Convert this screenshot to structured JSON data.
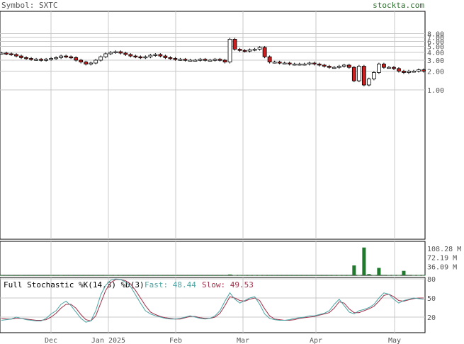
{
  "header": {
    "symbol_label": "Symbol: SXTC",
    "site": "stockta.com"
  },
  "stochastic": {
    "title": "Full Stochastic %K(14,3) %D(3)",
    "fast_label": "Fast: 48.44",
    "slow_label": "Slow: 49.53",
    "fast_color": "#4aa3a3",
    "slow_color": "#a0304a"
  },
  "colors": {
    "up_candle": "#ffffff",
    "down_candle": "#cc1f1f",
    "volume": "#1f7a2e",
    "grid": "#c8c8c8",
    "frame": "#000000"
  },
  "chart_data": [
    {
      "type": "candlestick",
      "title": "",
      "y_scale": "log",
      "y_ticks": [
        "8.00",
        "7.00",
        "6.00",
        "5.00",
        "4.00",
        "3.00",
        "2.00",
        "1.00"
      ],
      "x_ticks": [
        "Dec",
        "Jan 2025",
        "Feb",
        "Mar",
        "Apr",
        "May"
      ],
      "close_series": [
        3.9,
        3.8,
        3.7,
        3.5,
        3.3,
        3.2,
        3.1,
        3.1,
        3.0,
        3.1,
        3.2,
        3.3,
        3.5,
        3.4,
        3.3,
        3.0,
        2.8,
        2.6,
        2.7,
        3.0,
        3.4,
        3.8,
        4.0,
        4.1,
        3.9,
        3.7,
        3.5,
        3.4,
        3.3,
        3.4,
        3.6,
        3.7,
        3.5,
        3.3,
        3.2,
        3.1,
        3.1,
        3.0,
        3.0,
        3.0,
        3.1,
        3.0,
        3.0,
        3.1,
        3.0,
        2.8,
        6.5,
        4.5,
        4.3,
        4.2,
        4.4,
        4.5,
        4.8,
        3.4,
        2.8,
        2.8,
        2.7,
        2.7,
        2.6,
        2.6,
        2.6,
        2.6,
        2.7,
        2.6,
        2.5,
        2.4,
        2.3,
        2.3,
        2.4,
        2.5,
        2.3,
        1.4,
        2.4,
        1.2,
        1.5,
        1.9,
        2.6,
        2.3,
        2.3,
        2.2,
        2.0,
        1.9,
        2.0,
        2.0,
        2.1,
        2.0
      ]
    },
    {
      "type": "bar",
      "title": "",
      "y_ticks": [
        "108.28 M",
        "72.19 M",
        "36.09 M"
      ],
      "values_m": [
        0.4,
        0.3,
        0.3,
        0.2,
        0.3,
        0.2,
        0.2,
        0.2,
        0.2,
        0.2,
        0.3,
        0.3,
        0.4,
        0.3,
        0.3,
        0.2,
        0.2,
        0.2,
        0.2,
        0.3,
        0.3,
        0.4,
        0.4,
        0.5,
        0.4,
        0.3,
        0.3,
        0.3,
        0.2,
        0.2,
        0.3,
        0.3,
        0.3,
        0.2,
        0.2,
        0.2,
        0.2,
        0.2,
        0.2,
        0.2,
        0.2,
        0.2,
        0.2,
        0.2,
        0.2,
        0.3,
        3.5,
        1.2,
        0.6,
        0.5,
        0.5,
        0.6,
        0.6,
        0.5,
        0.4,
        0.4,
        0.3,
        0.3,
        0.3,
        0.3,
        0.3,
        0.3,
        0.3,
        0.3,
        0.3,
        0.3,
        0.4,
        0.5,
        0.6,
        0.5,
        0.5,
        40.0,
        1.2,
        112.0,
        5.0,
        1.5,
        30.0,
        2.0,
        1.5,
        1.2,
        1.0,
        18.0,
        2.0,
        1.2,
        1.0,
        0.8
      ]
    },
    {
      "type": "line",
      "title": "",
      "y_ticks": [
        "80",
        "50",
        "20"
      ],
      "series": [
        {
          "name": "Fast",
          "values": [
            15,
            16,
            17,
            20,
            18,
            16,
            15,
            14,
            14,
            18,
            25,
            30,
            40,
            45,
            38,
            28,
            18,
            12,
            14,
            30,
            55,
            70,
            78,
            80,
            79,
            75,
            68,
            55,
            42,
            30,
            25,
            22,
            20,
            18,
            17,
            17,
            18,
            20,
            22,
            20,
            18,
            17,
            18,
            22,
            30,
            45,
            58,
            48,
            42,
            46,
            50,
            52,
            40,
            25,
            18,
            16,
            15,
            15,
            16,
            18,
            19,
            20,
            22,
            22,
            24,
            26,
            30,
            40,
            48,
            38,
            28,
            25,
            30,
            32,
            35,
            40,
            50,
            58,
            56,
            48,
            42,
            46,
            48,
            50,
            49,
            48
          ]
        },
        {
          "name": "Slow",
          "values": [
            18,
            17,
            17,
            18,
            18,
            17,
            16,
            15,
            15,
            16,
            20,
            26,
            34,
            40,
            40,
            34,
            24,
            16,
            14,
            22,
            42,
            62,
            74,
            79,
            79,
            77,
            72,
            62,
            50,
            38,
            28,
            24,
            21,
            19,
            18,
            17,
            17,
            19,
            21,
            21,
            19,
            18,
            18,
            20,
            26,
            38,
            52,
            50,
            46,
            45,
            48,
            50,
            46,
            33,
            22,
            17,
            16,
            15,
            15,
            16,
            18,
            19,
            20,
            21,
            23,
            25,
            27,
            34,
            44,
            42,
            33,
            27,
            27,
            30,
            33,
            37,
            45,
            54,
            56,
            52,
            46,
            45,
            47,
            49,
            50,
            50
          ]
        }
      ]
    }
  ]
}
